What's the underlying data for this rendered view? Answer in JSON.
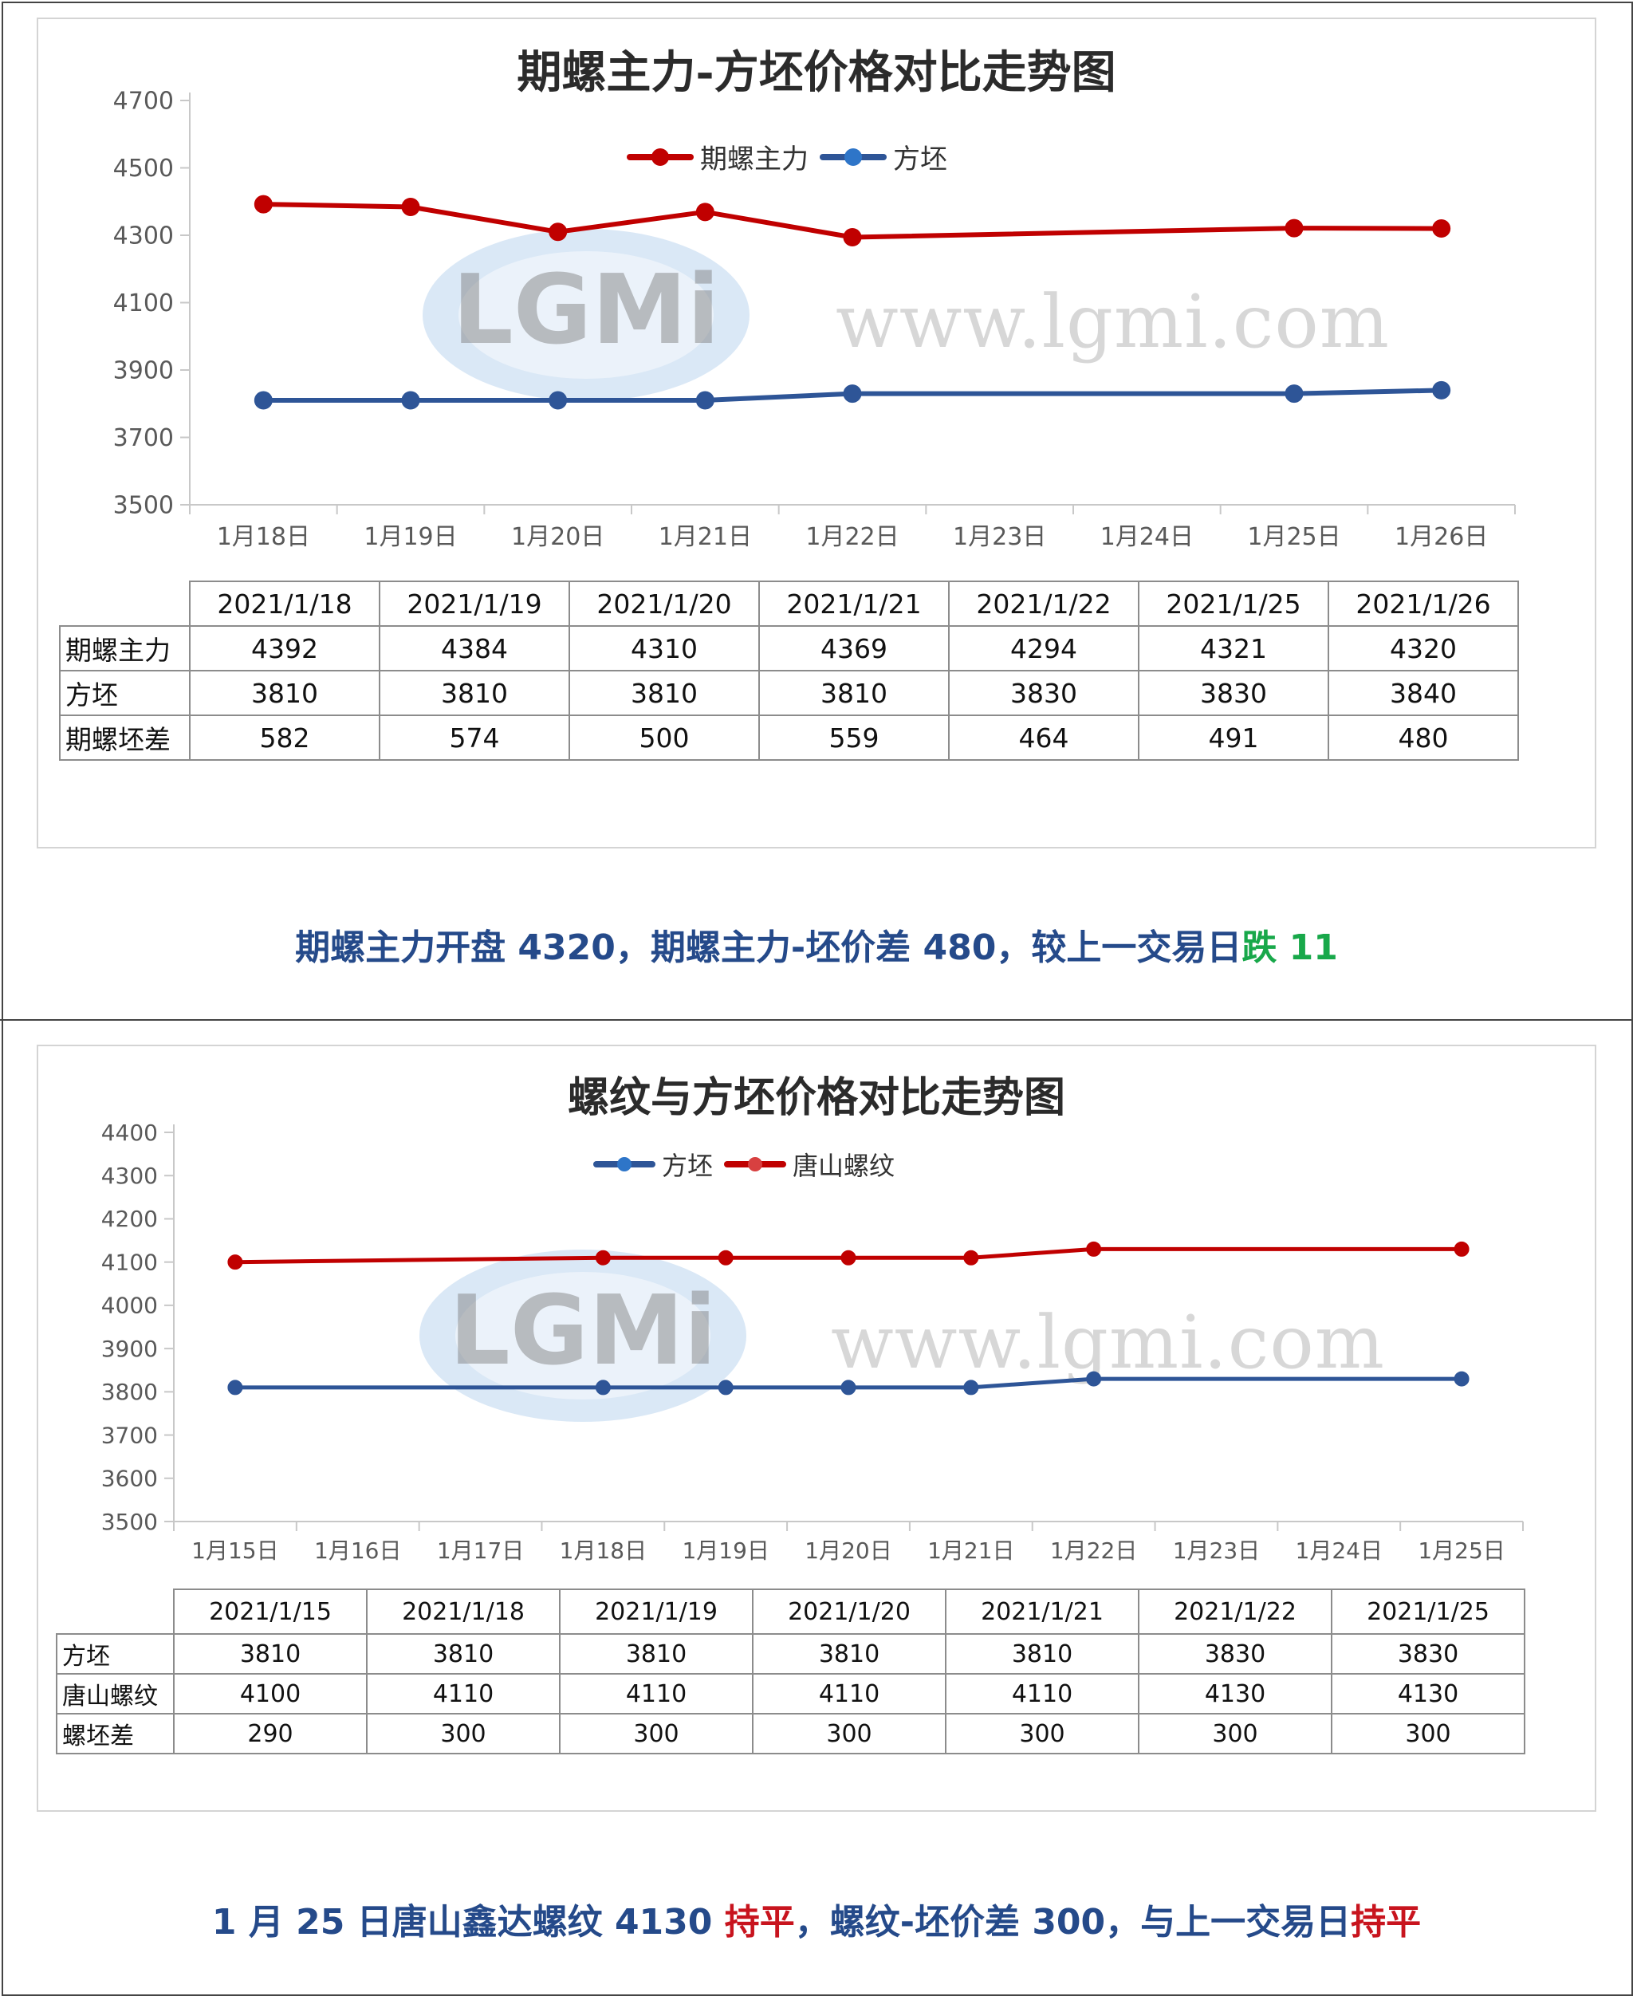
{
  "colors": {
    "red_series": "#c00000",
    "blue_series": "#2e5597",
    "summary_text": "#254a8a",
    "green_text": "#18a84a",
    "red_text": "#c8141e"
  },
  "watermark": {
    "url": "www.lgmi.com",
    "logo_text": "LGMi"
  },
  "top": {
    "chart_data": {
      "type": "line",
      "title": "期螺主力-方坯价格对比走势图",
      "categories": [
        "1月18日",
        "1月19日",
        "1月20日",
        "1月21日",
        "1月22日",
        "1月23日",
        "1月24日",
        "1月25日",
        "1月26日"
      ],
      "ylim": [
        3500,
        4700
      ],
      "yticks": [
        "4700",
        "4500",
        "4300",
        "4100",
        "3900",
        "3700",
        "3500"
      ],
      "series": [
        {
          "name": "期螺主力",
          "color": "#c00000",
          "values": [
            4392,
            4384,
            4310,
            4369,
            4294,
            null,
            null,
            4321,
            4320
          ]
        },
        {
          "name": "方坯",
          "color": "#2e5597",
          "values": [
            3810,
            3810,
            3810,
            3810,
            3830,
            null,
            null,
            3830,
            3840
          ]
        }
      ],
      "grid": false,
      "legend": "top-center"
    },
    "table": {
      "dates": [
        "2021/1/18",
        "2021/1/19",
        "2021/1/20",
        "2021/1/21",
        "2021/1/22",
        "2021/1/25",
        "2021/1/26"
      ],
      "rows": [
        {
          "label": "期螺主力",
          "values": [
            "4392",
            "4384",
            "4310",
            "4369",
            "4294",
            "4321",
            "4320"
          ]
        },
        {
          "label": "方坯",
          "values": [
            "3810",
            "3810",
            "3810",
            "3810",
            "3830",
            "3830",
            "3840"
          ]
        },
        {
          "label": "期螺坯差",
          "values": [
            "582",
            "574",
            "500",
            "559",
            "464",
            "491",
            "480"
          ]
        }
      ]
    },
    "summary": {
      "text": "期螺主力开盘 4320，期螺主力-坯价差 480，较上一交易日",
      "highlight": "跌 11"
    }
  },
  "bottom": {
    "chart_data": {
      "type": "line",
      "title": "螺纹与方坯价格对比走势图",
      "categories": [
        "1月15日",
        "1月16日",
        "1月17日",
        "1月18日",
        "1月19日",
        "1月20日",
        "1月21日",
        "1月22日",
        "1月23日",
        "1月24日",
        "1月25日"
      ],
      "ylim": [
        3500,
        4400
      ],
      "yticks": [
        "4400",
        "4300",
        "4200",
        "4100",
        "4000",
        "3900",
        "3800",
        "3700",
        "3600",
        "3500"
      ],
      "series": [
        {
          "name": "方坯",
          "color": "#2e5597",
          "values": [
            3810,
            null,
            null,
            3810,
            3810,
            3810,
            3810,
            3830,
            null,
            null,
            3830
          ]
        },
        {
          "name": "唐山螺纹",
          "color": "#c00000",
          "values": [
            4100,
            null,
            null,
            4110,
            4110,
            4110,
            4110,
            4130,
            null,
            null,
            4130
          ]
        }
      ],
      "grid": false,
      "legend": "top-center"
    },
    "table": {
      "dates": [
        "2021/1/15",
        "2021/1/18",
        "2021/1/19",
        "2021/1/20",
        "2021/1/21",
        "2021/1/22",
        "2021/1/25"
      ],
      "rows": [
        {
          "label": "方坯",
          "values": [
            "3810",
            "3810",
            "3810",
            "3810",
            "3810",
            "3830",
            "3830"
          ]
        },
        {
          "label": "唐山螺纹",
          "values": [
            "4100",
            "4110",
            "4110",
            "4110",
            "4110",
            "4130",
            "4130"
          ]
        },
        {
          "label": "螺坯差",
          "values": [
            "290",
            "300",
            "300",
            "300",
            "300",
            "300",
            "300"
          ]
        }
      ]
    },
    "summary": {
      "part1": "1 月 25 日唐山鑫达螺纹 4130 ",
      "flat1": "持平",
      "part2": "，螺纹-坯价差 300，与上一交易日",
      "flat2": "持平"
    }
  }
}
